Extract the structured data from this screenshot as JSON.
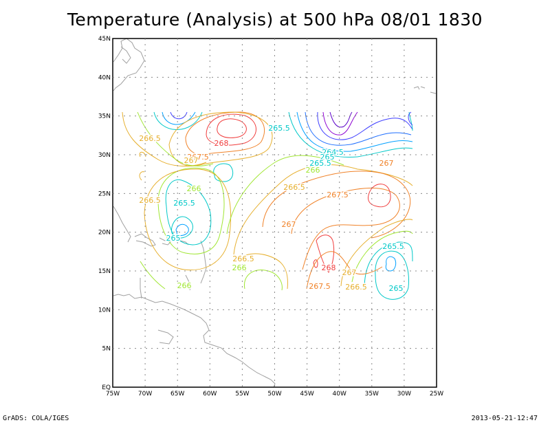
{
  "title": "Temperature (Analysis) at 500 hPa 08/01 1830",
  "footer": {
    "left": "GrADS: COLA/IGES",
    "right": "2013-05-21-12:47"
  },
  "map": {
    "lon_labels": [
      "75W",
      "70W",
      "65W",
      "60W",
      "55W",
      "50W",
      "45W",
      "40W",
      "35W",
      "30W",
      "25W"
    ],
    "lat_labels": [
      "EQ",
      "5N",
      "10N",
      "15N",
      "20N",
      "25N",
      "30N",
      "35N",
      "40N",
      "45N"
    ],
    "contour_labels": [
      {
        "text": "265.5",
        "color": "#00c8c8"
      },
      {
        "text": "266.5",
        "color": "#e6af2d"
      },
      {
        "text": "268",
        "color": "#f03c3c"
      },
      {
        "text": "267.5",
        "color": "#f08228"
      },
      {
        "text": "267",
        "color": "#e6af2d"
      },
      {
        "text": "264.5",
        "color": "#00c8c8"
      },
      {
        "text": "265",
        "color": "#00c8c8"
      },
      {
        "text": "265.5",
        "color": "#00c8c8"
      },
      {
        "text": "266",
        "color": "#a0e632"
      },
      {
        "text": "267",
        "color": "#f08228"
      },
      {
        "text": "266",
        "color": "#a0e632"
      },
      {
        "text": "266.5",
        "color": "#e6af2d"
      },
      {
        "text": "265.5",
        "color": "#00c8c8"
      },
      {
        "text": "266.5",
        "color": "#e6af2d"
      },
      {
        "text": "267.5",
        "color": "#f08228"
      },
      {
        "text": "265",
        "color": "#00c8c8"
      },
      {
        "text": "267",
        "color": "#f08228"
      },
      {
        "text": "265.5",
        "color": "#00c8c8"
      },
      {
        "text": "266.5",
        "color": "#e6af2d"
      },
      {
        "text": "266",
        "color": "#a0e632"
      },
      {
        "text": "268",
        "color": "#f03c3c"
      },
      {
        "text": "267",
        "color": "#e6af2d"
      },
      {
        "text": "267.5",
        "color": "#f08228"
      },
      {
        "text": "266.5",
        "color": "#e6af2d"
      },
      {
        "text": "265",
        "color": "#00c8c8"
      },
      {
        "text": "266",
        "color": "#a0e632"
      }
    ]
  }
}
